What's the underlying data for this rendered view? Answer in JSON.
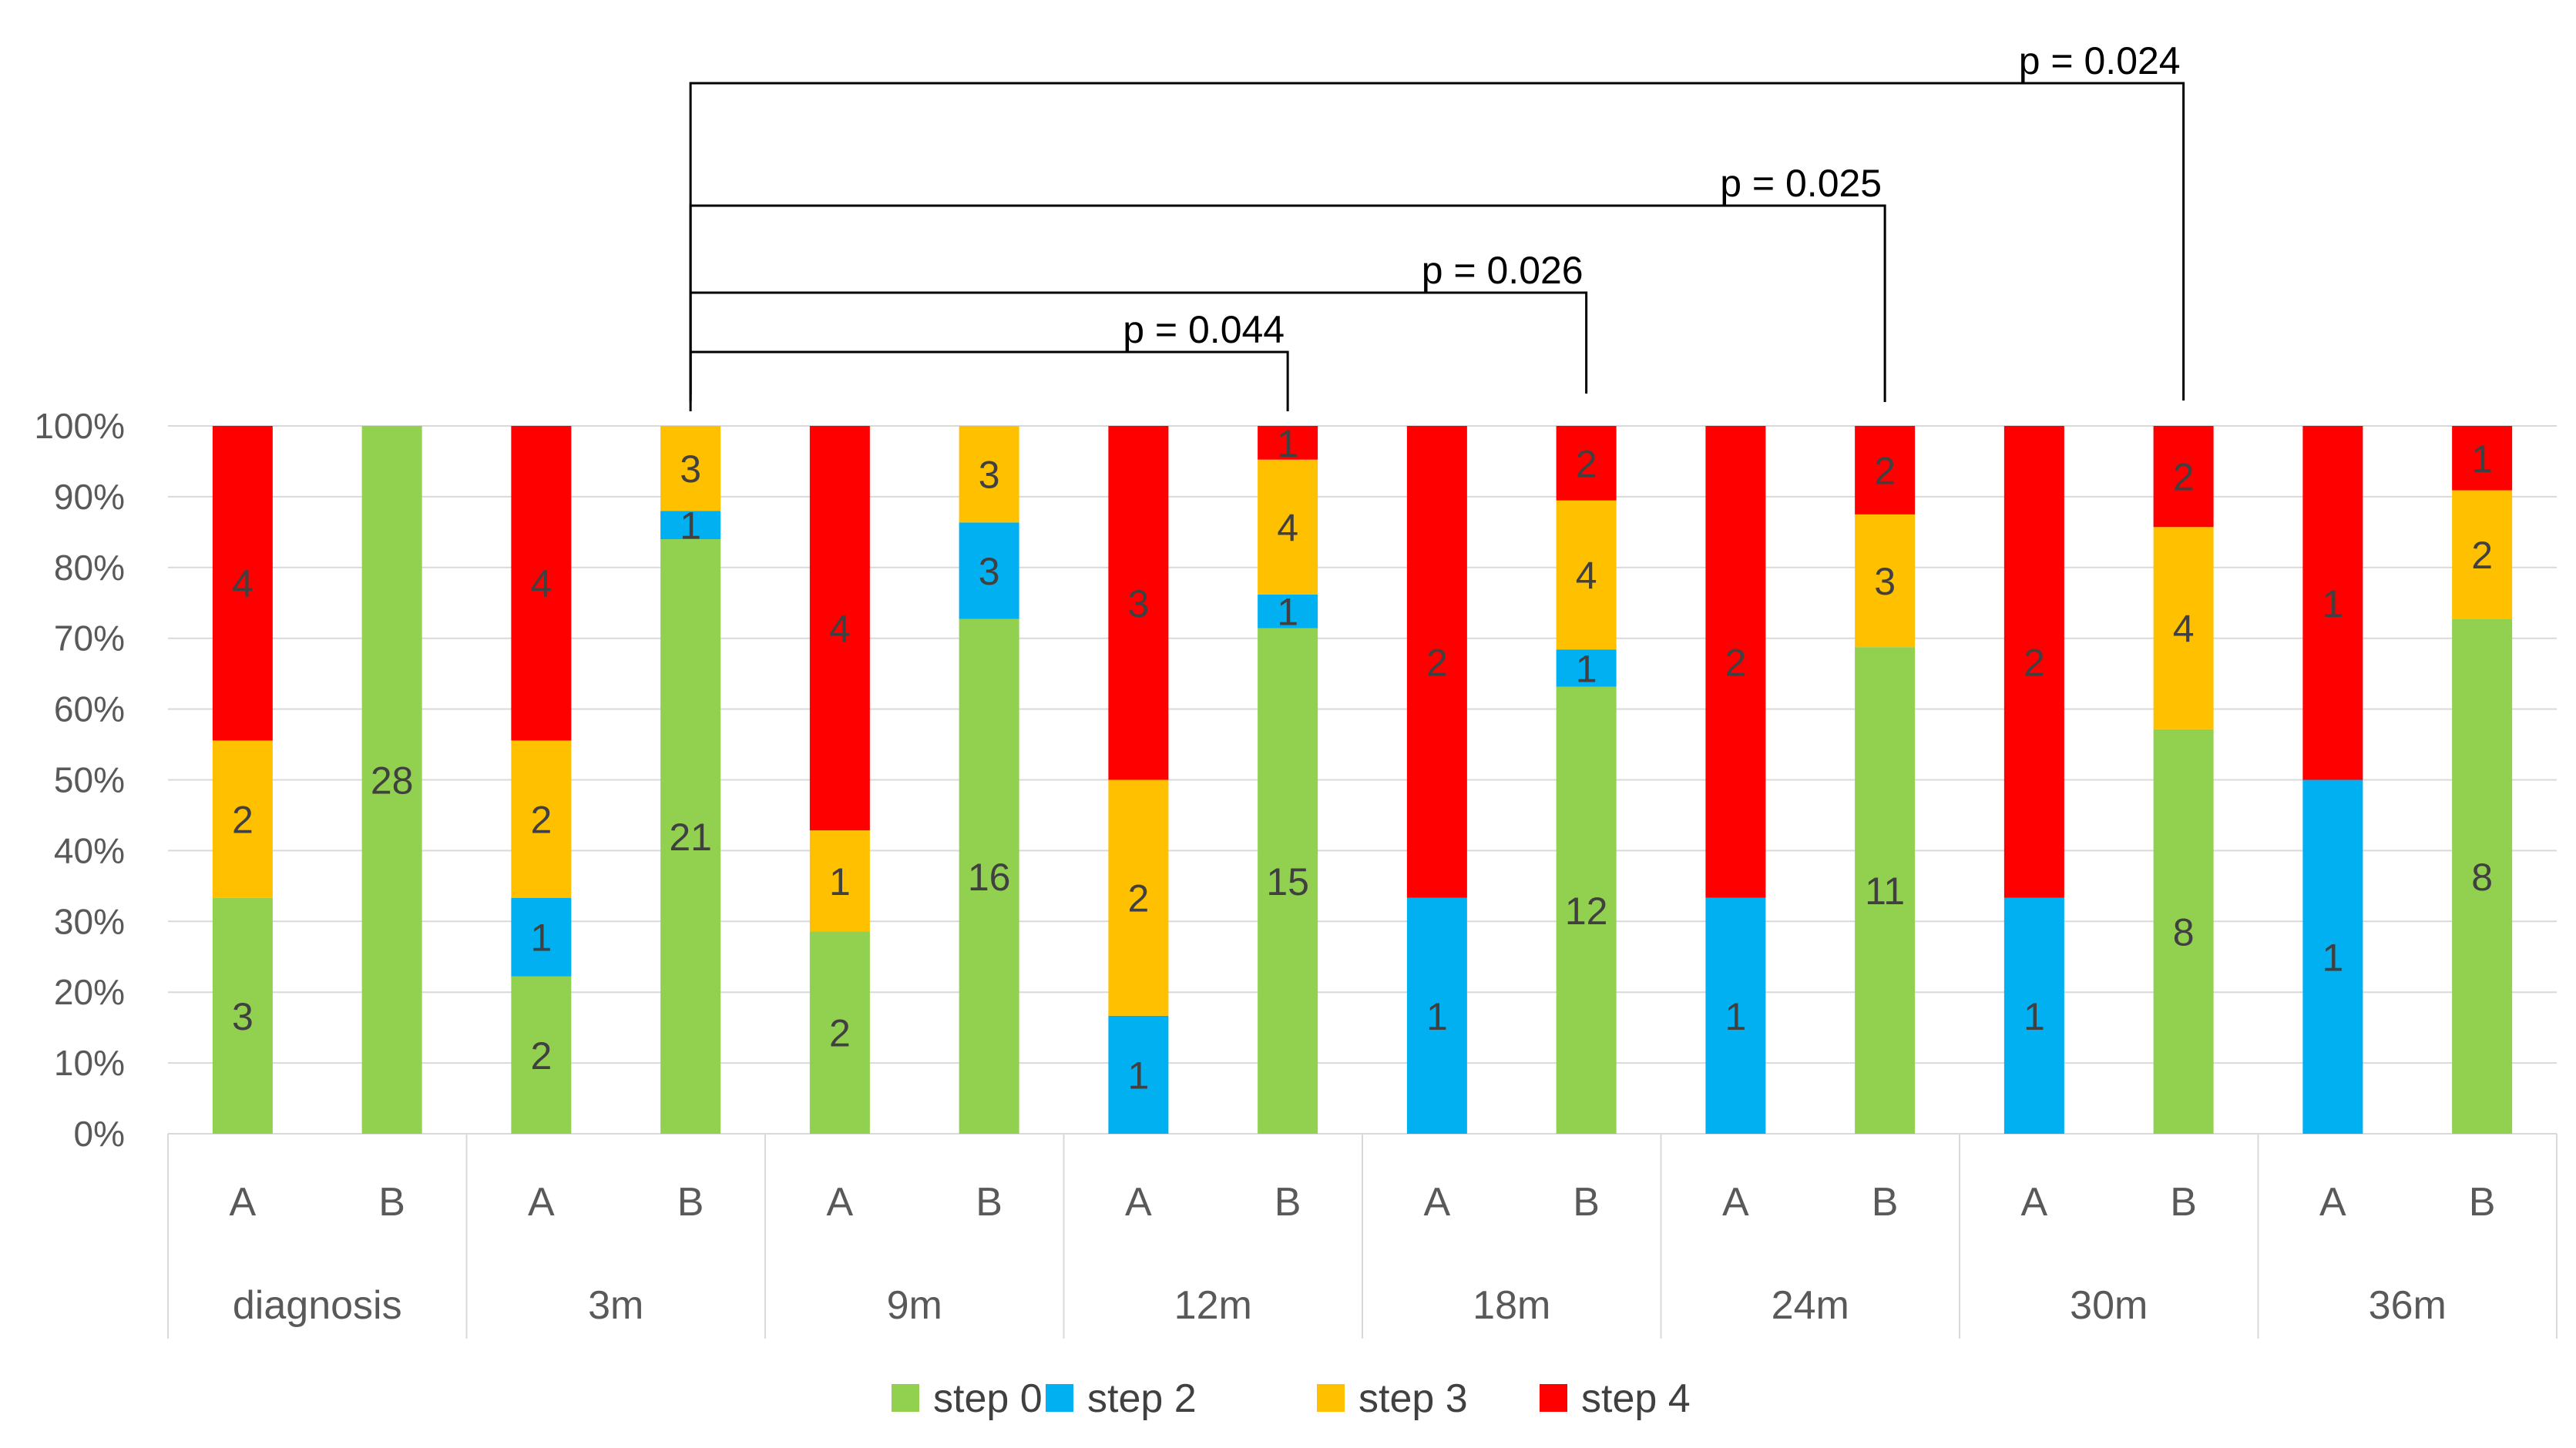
{
  "chart_data": {
    "type": "bar",
    "stacked": "percent",
    "title": "",
    "xlabel": "",
    "ylabel": "",
    "ylim": [
      0,
      100
    ],
    "yticks": [
      "0%",
      "10%",
      "20%",
      "30%",
      "40%",
      "50%",
      "60%",
      "70%",
      "80%",
      "90%",
      "100%"
    ],
    "groups": [
      "diagnosis",
      "3m",
      "9m",
      "12m",
      "18m",
      "24m",
      "30m",
      "36m"
    ],
    "subcategories": [
      "A",
      "B"
    ],
    "series": [
      {
        "name": "step 0",
        "color": "#92D050",
        "values": [
          3,
          28,
          2,
          21,
          2,
          16,
          0,
          15,
          0,
          12,
          0,
          11,
          0,
          8,
          0,
          8
        ]
      },
      {
        "name": "step 2",
        "color": "#00B0F0",
        "values": [
          0,
          0,
          1,
          1,
          0,
          3,
          1,
          1,
          1,
          1,
          1,
          0,
          1,
          0,
          1,
          0
        ]
      },
      {
        "name": "step 3",
        "color": "#FFC000",
        "values": [
          2,
          0,
          2,
          3,
          1,
          3,
          2,
          4,
          0,
          4,
          0,
          3,
          0,
          4,
          0,
          2
        ]
      },
      {
        "name": "step 4",
        "color": "#FF0000",
        "values": [
          4,
          0,
          4,
          0,
          4,
          0,
          3,
          1,
          2,
          2,
          2,
          2,
          2,
          2,
          1,
          1
        ]
      }
    ],
    "significance": [
      {
        "from_bar": 3,
        "to_bar": 7,
        "label": "p = 0.044"
      },
      {
        "from_bar": 3,
        "to_bar": 9,
        "label": "p = 0.026"
      },
      {
        "from_bar": 3,
        "to_bar": 11,
        "label": "p = 0.025"
      },
      {
        "from_bar": 3,
        "to_bar": 13,
        "label": "p = 0.024"
      }
    ],
    "legend": [
      "step 0",
      "step 2",
      "step 3",
      "step 4"
    ],
    "legend_position": "bottom",
    "grid": true
  }
}
